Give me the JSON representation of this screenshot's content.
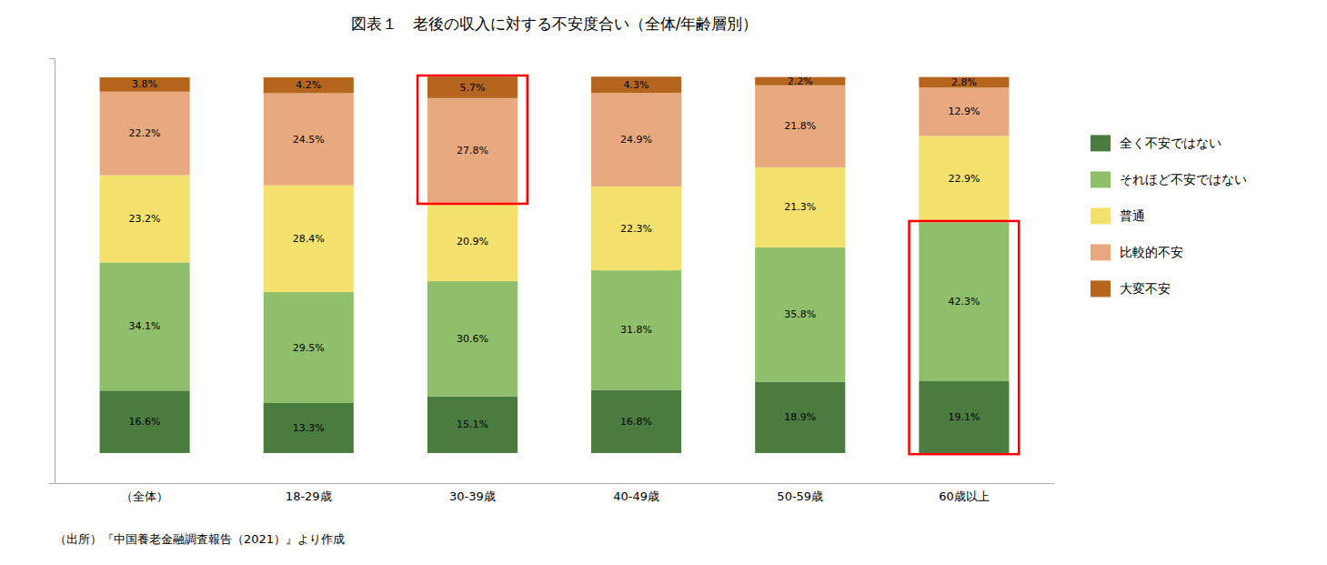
{
  "chart_data": {
    "type": "bar",
    "stacked": true,
    "data_labels": true,
    "tick_labels": "x",
    "grid": false,
    "title": "図表１　老後の収入に対する不安度合い（全体/年齢層別）",
    "categories": [
      "（全体）",
      "18-29歳",
      "30-39歳",
      "40-49歳",
      "50-59歳",
      "60歳以上"
    ],
    "ylim": [
      -8,
      105
    ],
    "yticks": [],
    "series": [
      {
        "name": "全く不安ではない",
        "color": "#4a7c3f",
        "values": [
          16.6,
          13.3,
          15.1,
          16.8,
          18.9,
          19.1
        ],
        "value_labels": [
          "16.6%",
          "13.3%",
          "15.1%",
          "16.8%",
          "18.9%",
          "19.1%"
        ]
      },
      {
        "name": "それほど不安ではない",
        "color": "#8fbf6a",
        "values": [
          34.1,
          29.5,
          30.6,
          31.8,
          35.8,
          42.3
        ],
        "value_labels": [
          "34.1%",
          "29.5%",
          "30.6%",
          "31.8%",
          "35.8%",
          "42.3%"
        ]
      },
      {
        "name": "普通",
        "color": "#f5e16e",
        "values": [
          23.2,
          28.4,
          20.9,
          22.3,
          21.3,
          22.9
        ],
        "value_labels": [
          "23.2%",
          "28.4%",
          "20.9%",
          "22.3%",
          "21.3%",
          "22.9%"
        ]
      },
      {
        "name": "比較的不安",
        "color": "#e8a97e",
        "values": [
          22.2,
          24.5,
          27.8,
          24.9,
          21.8,
          12.9
        ],
        "value_labels": [
          "22.2%",
          "24.5%",
          "27.8%",
          "24.9%",
          "21.8%",
          "12.9%"
        ]
      },
      {
        "name": "大変不安",
        "color": "#b5651d",
        "values": [
          3.8,
          4.2,
          5.7,
          4.3,
          2.2,
          2.8
        ],
        "value_labels": [
          "3.8%",
          "4.2%",
          "5.7%",
          "4.3%",
          "2.2%",
          "2.8%"
        ]
      }
    ],
    "annotations": [
      {
        "text": "（出所）『中国養老金融調査報告（2021）』より作成"
      },
      {
        "category": "30-39歳",
        "series": [
          "比較的不安",
          "大変不安"
        ],
        "color": "red"
      },
      {
        "category": "60歳以上",
        "series": [
          "全く不安ではない",
          "それほど不安ではない"
        ],
        "color": "red"
      }
    ]
  }
}
